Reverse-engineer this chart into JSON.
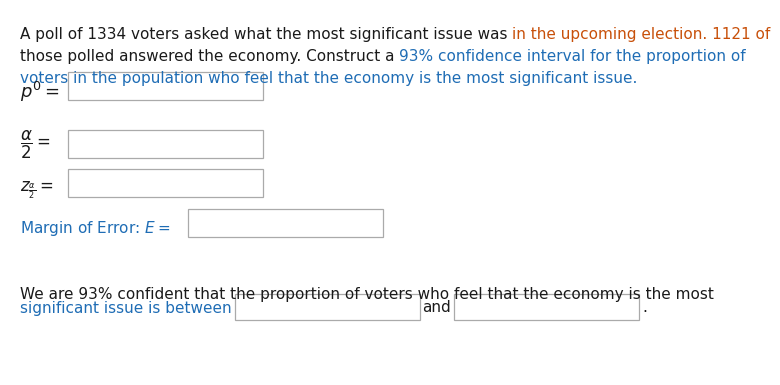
{
  "bg_color": "#ffffff",
  "text_color_black": "#1a1a1a",
  "text_color_blue": "#1f6db5",
  "text_color_orange": "#c8500a",
  "box_edge_color": "#aaaaaa",
  "fontsize": 11.0,
  "line1_black": "A poll of 1334 voters asked what the most significant issue was ",
  "line1_orange": "in the upcoming election. 1121 of",
  "line2_black": "those polled answered the economy. Construct a ",
  "line2_blue": "93% confidence interval for the proportion of",
  "line3_blue": "voters in the population who feel that the economy is the most significant issue.",
  "bottom1": "We are 93% confident that the proportion of voters who feel that the economy is the most",
  "bottom2_pre": "significant issue is between",
  "bottom2_and": "and",
  "bottom2_end": "."
}
